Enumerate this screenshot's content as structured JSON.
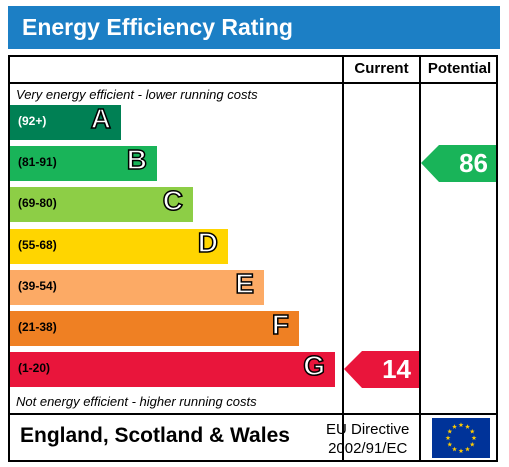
{
  "title": "Energy Efficiency Rating",
  "columns": {
    "current": "Current",
    "potential": "Potential"
  },
  "notes": {
    "top": "Very energy efficient - lower running costs",
    "bottom": "Not energy efficient - higher running costs"
  },
  "footer": {
    "country": "England, Scotland & Wales",
    "directive_line1": "EU Directive",
    "directive_line2": "2002/91/EC"
  },
  "chart_data": {
    "type": "bar",
    "categories": [
      "A",
      "B",
      "C",
      "D",
      "E",
      "F",
      "G"
    ],
    "ranges": [
      "(92+)",
      "(81-91)",
      "(69-80)",
      "(55-68)",
      "(39-54)",
      "(21-38)",
      "(1-20)"
    ],
    "colors": [
      "#008054",
      "#19b459",
      "#8dce46",
      "#ffd500",
      "#fcaa65",
      "#ef8023",
      "#e9153b"
    ],
    "current": {
      "value": 14,
      "band": "G",
      "color": "#e9153b"
    },
    "potential": {
      "value": 86,
      "band": "B",
      "color": "#19b459"
    }
  }
}
